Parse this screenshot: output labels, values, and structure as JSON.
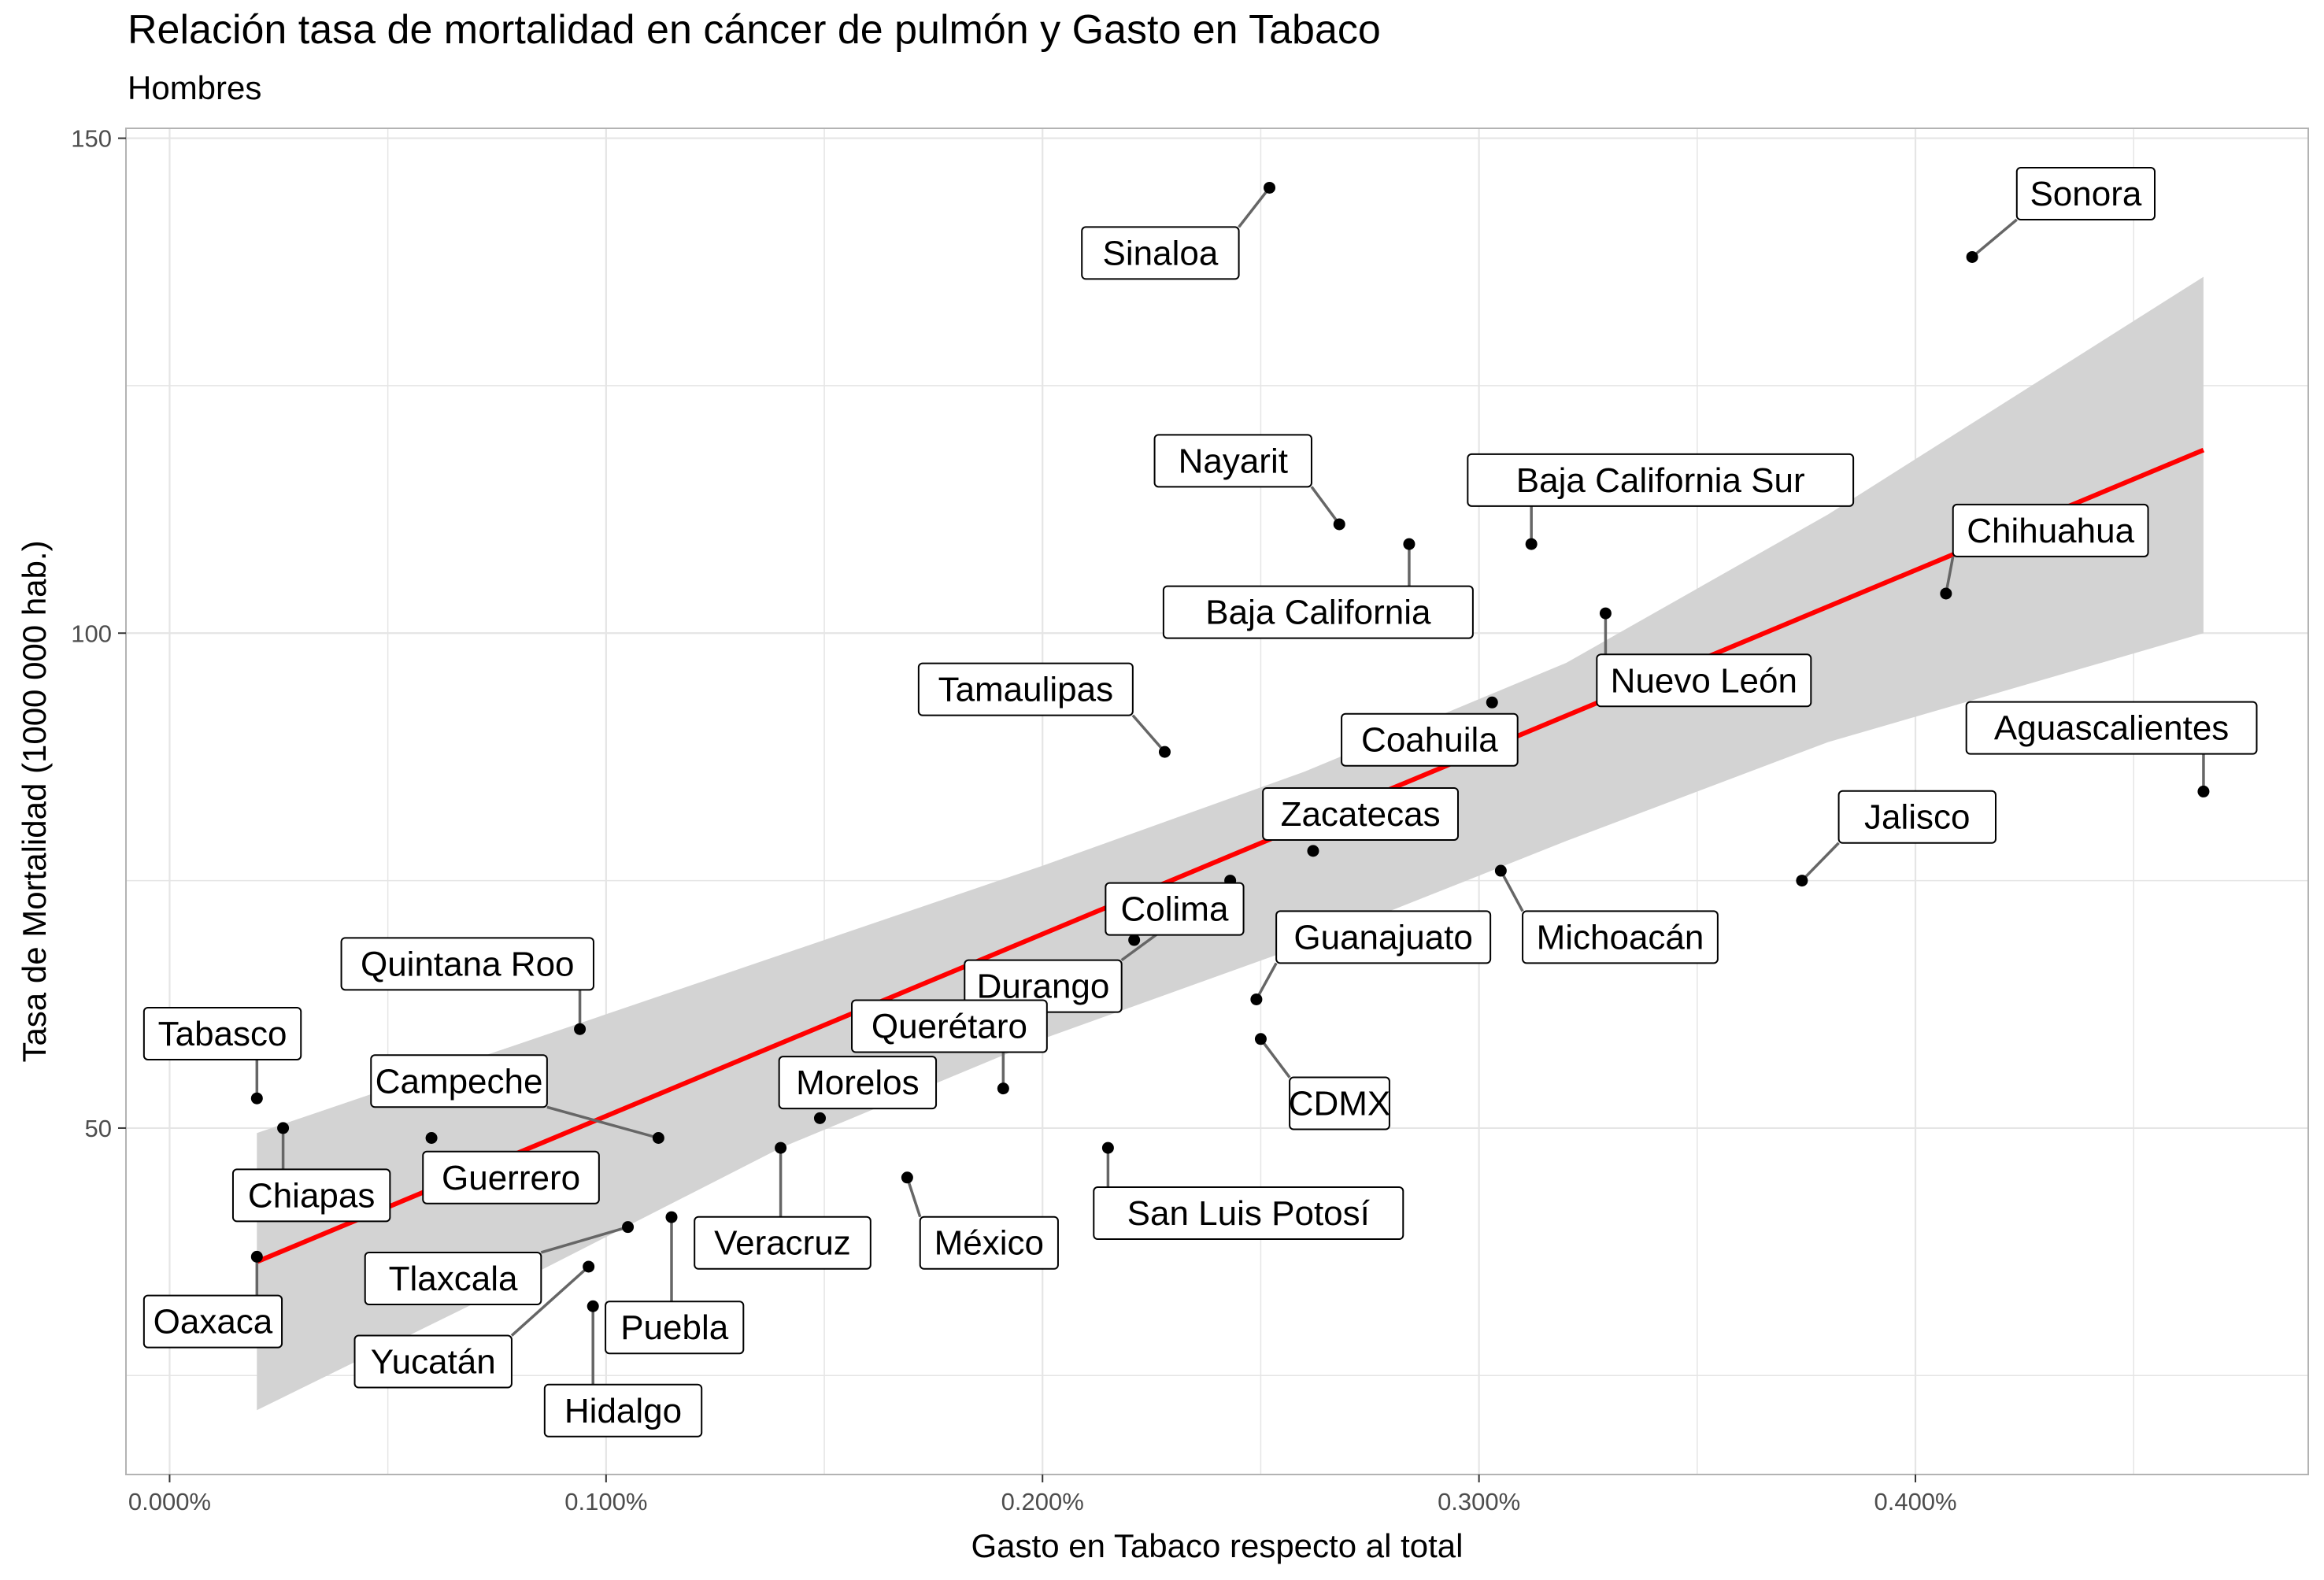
{
  "chart_data": {
    "type": "scatter",
    "title": "Relación tasa de mortalidad en cáncer de pulmón y Gasto en Tabaco",
    "subtitle": "Hombres",
    "xlabel": "Gasto en Tabaco respecto al total",
    "ylabel": "Tasa de Mortalidad   (1000 000 hab.)",
    "xlim": [
      -0.0001,
      0.0049
    ],
    "ylim": [
      15,
      151
    ],
    "x_ticks": [
      0.0,
      0.001,
      0.002,
      0.003,
      0.004
    ],
    "x_tick_labels": [
      "0.000%",
      "0.100%",
      "0.200%",
      "0.300%",
      "0.400%"
    ],
    "y_ticks": [
      50,
      100,
      150
    ],
    "y_tick_labels": [
      "50",
      "100",
      "150"
    ],
    "grid": true,
    "points": [
      {
        "name": "Sonora",
        "x": 0.00413,
        "y": 138
      },
      {
        "name": "Sinaloa",
        "x": 0.00252,
        "y": 145
      },
      {
        "name": "Nayarit",
        "x": 0.00268,
        "y": 111
      },
      {
        "name": "Baja California",
        "x": 0.00284,
        "y": 109
      },
      {
        "name": "Baja California Sur",
        "x": 0.00312,
        "y": 109
      },
      {
        "name": "Chihuahua",
        "x": 0.00407,
        "y": 104
      },
      {
        "name": "Nuevo León",
        "x": 0.00329,
        "y": 102
      },
      {
        "name": "Tamaulipas",
        "x": 0.00228,
        "y": 88
      },
      {
        "name": "Coahuila",
        "x": 0.00303,
        "y": 93
      },
      {
        "name": "Aguascalientes",
        "x": 0.00466,
        "y": 84
      },
      {
        "name": "Zacatecas",
        "x": 0.00262,
        "y": 78
      },
      {
        "name": "Jalisco",
        "x": 0.00374,
        "y": 75
      },
      {
        "name": "Michoacán",
        "x": 0.00305,
        "y": 76
      },
      {
        "name": "Colima",
        "x": 0.00221,
        "y": 69
      },
      {
        "name": "Durango",
        "x": 0.00243,
        "y": 75
      },
      {
        "name": "Guanajuato",
        "x": 0.00249,
        "y": 63
      },
      {
        "name": "CDMX",
        "x": 0.0025,
        "y": 59
      },
      {
        "name": "Querétaro",
        "x": 0.00191,
        "y": 54
      },
      {
        "name": "San Luis Potosí",
        "x": 0.00215,
        "y": 48
      },
      {
        "name": "Morelos",
        "x": 0.00149,
        "y": 51
      },
      {
        "name": "México",
        "x": 0.00169,
        "y": 45
      },
      {
        "name": "Veracruz",
        "x": 0.0014,
        "y": 48
      },
      {
        "name": "Quintana Roo",
        "x": 0.00094,
        "y": 60
      },
      {
        "name": "Campeche",
        "x": 0.00112,
        "y": 49
      },
      {
        "name": "Guerrero",
        "x": 0.0006,
        "y": 49
      },
      {
        "name": "Tabasco",
        "x": 0.0002,
        "y": 53
      },
      {
        "name": "Chiapas",
        "x": 0.00026,
        "y": 50
      },
      {
        "name": "Oaxaca",
        "x": 0.0002,
        "y": 37
      },
      {
        "name": "Tlaxcala",
        "x": 0.00105,
        "y": 40
      },
      {
        "name": "Puebla",
        "x": 0.00115,
        "y": 41
      },
      {
        "name": "Yucatán",
        "x": 0.00096,
        "y": 36
      },
      {
        "name": "Hidalgo",
        "x": 0.00097,
        "y": 32
      }
    ],
    "regression": {
      "color": "#ff0000",
      "x": [
        0.0002,
        0.00466
      ],
      "y": [
        36.5,
        118.5
      ]
    },
    "confidence_band": {
      "color": "#d3d3d3",
      "x": [
        0.0002,
        0.0008,
        0.0014,
        0.002,
        0.0026,
        0.0032,
        0.0038,
        0.00466
      ],
      "upper": [
        49.5,
        58.5,
        67.5,
        76.5,
        86.0,
        97.0,
        112.0,
        136.0
      ],
      "lower": [
        21.5,
        34.5,
        48.0,
        59.0,
        68.5,
        79.0,
        89.0,
        100.0
      ]
    },
    "colors": {
      "point": "#000000",
      "label_border": "#000000",
      "segment": "#666666",
      "grid": "#e5e5e5",
      "panel_border": "#b3b3b3"
    }
  }
}
